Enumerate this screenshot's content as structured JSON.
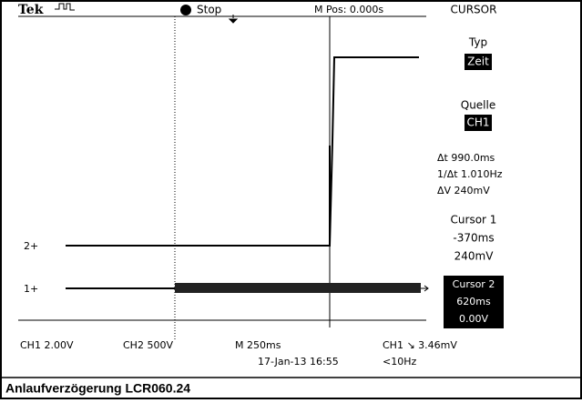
{
  "header": {
    "brand": "Tek",
    "state": "Stop",
    "position": "M Pos: 0.000s",
    "menu": "CURSOR"
  },
  "side_menu": {
    "type_label": "Typ",
    "type_value": "Zeit",
    "source_label": "Quelle",
    "source_value": "CH1",
    "delta_t": "Δt 990.0ms",
    "inv_delta_t": "1/Δt 1.010Hz",
    "delta_v": "ΔV 240mV",
    "cursor1_label": "Cursor 1",
    "cursor1_time": "-370ms",
    "cursor1_volt": "240mV",
    "cursor2_label": "Cursor 2",
    "cursor2_time": "620ms",
    "cursor2_volt": "0.00V"
  },
  "channels": {
    "ch2_marker": "2+",
    "ch1_marker": "1+"
  },
  "footer": {
    "ch1_scale": "CH1  2.00V",
    "ch2_scale": "CH2  500V",
    "timebase": "M 250ms",
    "date": "17-Jan-13 16:55",
    "trigger": "CH1 ↘ 3.46mV",
    "frequency": "<10Hz"
  },
  "caption": "Anlaufverzögerung LCR060.24"
}
